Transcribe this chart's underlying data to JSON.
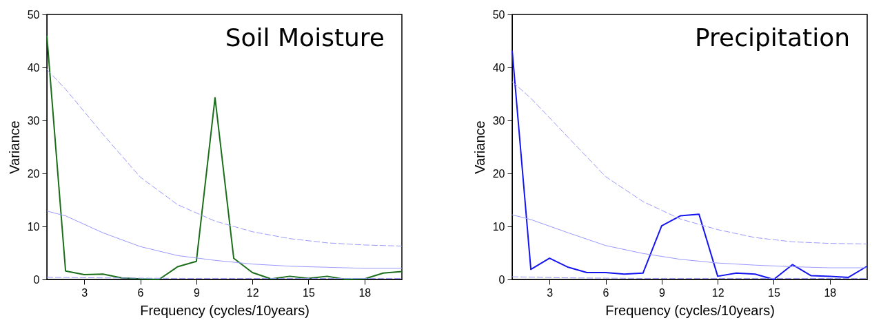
{
  "chart_data": [
    {
      "type": "line",
      "title": "Soil Moisture",
      "xlabel": "Frequency (cycles/10years)",
      "ylabel": "Variance",
      "xlim": [
        1,
        20
      ],
      "xticks": [
        3,
        6,
        9,
        12,
        15,
        18
      ],
      "ylim": [
        0,
        50
      ],
      "yticks": [
        0,
        10,
        20,
        30,
        40,
        50
      ],
      "grid": false,
      "series": [
        {
          "color": "#1a6e1a",
          "line_style": "solid",
          "x": [
            1,
            2,
            3,
            4,
            5,
            6,
            7,
            8,
            9,
            10,
            11,
            12,
            13,
            14,
            15,
            16,
            17,
            18,
            19,
            20
          ],
          "values": [
            46,
            1.6,
            0.9,
            1.0,
            0.3,
            0.1,
            0,
            2.4,
            3.4,
            34.3,
            4.0,
            1.3,
            0.1,
            0.6,
            0.2,
            0.6,
            0,
            0.1,
            1.2,
            1.5
          ]
        },
        {
          "color": "#9999ff",
          "line_style": "solid",
          "x": [
            1,
            2,
            4,
            6,
            8,
            10,
            12,
            14,
            16,
            18,
            20
          ],
          "values": [
            12.9,
            12.0,
            8.8,
            6.2,
            4.5,
            3.6,
            2.9,
            2.5,
            2.3,
            2.1,
            2.1
          ]
        },
        {
          "color": "#9999ff",
          "line_style": "dashed",
          "x": [
            1,
            2,
            4,
            6,
            8,
            10,
            12,
            14,
            16,
            18,
            20
          ],
          "values": [
            39.6,
            35.9,
            27.4,
            19.3,
            14.1,
            11.0,
            9.0,
            7.7,
            6.9,
            6.5,
            6.3
          ]
        },
        {
          "color": "#9999ff",
          "line_style": "dashed",
          "x": [
            1,
            4,
            8,
            12,
            16,
            20
          ],
          "values": [
            0.4,
            0.3,
            0.2,
            0.2,
            0.2,
            0.2
          ]
        }
      ]
    },
    {
      "type": "line",
      "title": "Precipitation",
      "xlabel": "Frequency (cycles/10years)",
      "ylabel": "Variance",
      "xlim": [
        1,
        20
      ],
      "xticks": [
        3,
        6,
        9,
        12,
        15,
        18
      ],
      "ylim": [
        0,
        50
      ],
      "yticks": [
        0,
        10,
        20,
        30,
        40,
        50
      ],
      "grid": false,
      "series": [
        {
          "color": "#1414f0",
          "line_style": "solid",
          "x": [
            1,
            2,
            3,
            4,
            5,
            6,
            7,
            8,
            9,
            10,
            11,
            12,
            13,
            14,
            15,
            16,
            17,
            18,
            19,
            20
          ],
          "values": [
            43.2,
            1.9,
            4.0,
            2.3,
            1.3,
            1.3,
            1.0,
            1.2,
            10.1,
            12.0,
            12.3,
            0.6,
            1.2,
            1.0,
            0,
            2.8,
            0.7,
            0.6,
            0.4,
            2.5
          ]
        },
        {
          "color": "#9999ff",
          "line_style": "solid",
          "x": [
            1,
            2,
            4,
            6,
            8,
            10,
            12,
            14,
            16,
            18,
            20
          ],
          "values": [
            12.2,
            11.3,
            8.8,
            6.4,
            4.9,
            3.8,
            3.1,
            2.7,
            2.4,
            2.2,
            2.2
          ]
        },
        {
          "color": "#9999ff",
          "line_style": "dashed",
          "x": [
            1,
            2,
            4,
            6,
            8,
            10,
            12,
            14,
            16,
            18,
            20
          ],
          "values": [
            37.3,
            34.2,
            26.8,
            19.4,
            14.7,
            11.4,
            9.4,
            7.9,
            7.1,
            6.8,
            6.7
          ]
        },
        {
          "color": "#9999ff",
          "line_style": "dashed",
          "x": [
            1,
            4,
            8,
            12,
            16,
            20
          ],
          "values": [
            0.5,
            0.3,
            0.2,
            0.2,
            0.2,
            0.2
          ]
        }
      ]
    }
  ]
}
